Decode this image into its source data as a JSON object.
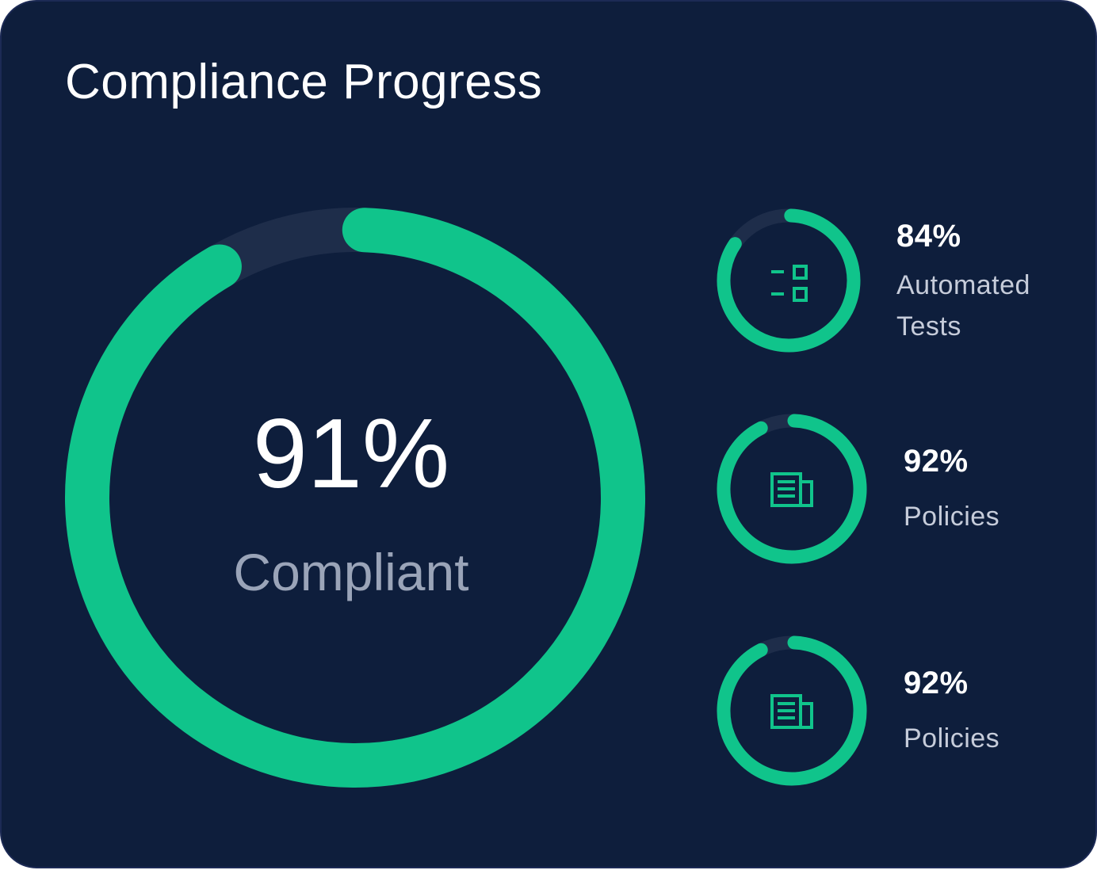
{
  "title": "Compliance Progress",
  "accent_color": "#10c48b",
  "track_color": "#1e2d4a",
  "background_color": "#0e1e3c",
  "overall": {
    "value": "91%",
    "label": "Compliant",
    "progress": 0.91
  },
  "metrics": [
    {
      "value": "84%",
      "label": "Automated Tests",
      "progress": 0.84,
      "icon": "checklist-icon"
    },
    {
      "value": "92%",
      "label": "Policies",
      "progress": 0.92,
      "icon": "document-icon"
    },
    {
      "value": "92%",
      "label": "Policies",
      "progress": 0.92,
      "icon": "document-icon"
    }
  ]
}
